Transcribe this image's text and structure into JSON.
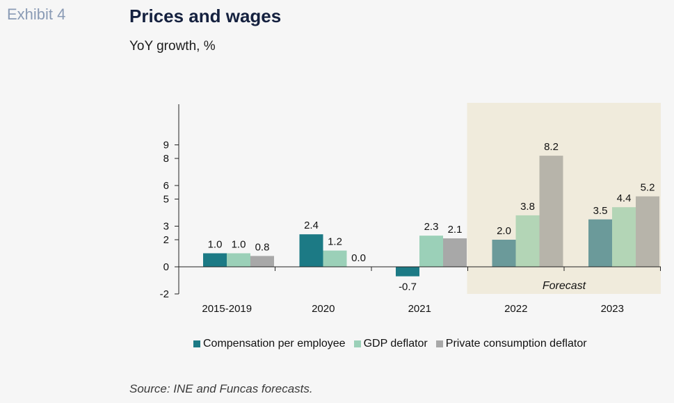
{
  "header": {
    "exhibit": "Exhibit 4",
    "title": "Prices and wages",
    "subtitle": "YoY growth, %"
  },
  "footer": {
    "source": "Source: INE and Funcas forecasts."
  },
  "colors": {
    "background": "#f6f6f6",
    "forecast_band": "#f0ebdc",
    "compensation": "#1c7a85",
    "gdp": "#9bd0b8",
    "private": "#a8a8a8",
    "compensation_forecast": "#6b9a9a",
    "gdp_forecast": "#b3d5b6",
    "private_forecast": "#b7b4aa"
  },
  "chart_data": {
    "type": "bar",
    "categories": [
      "2015-2019",
      "2020",
      "2021",
      "2022",
      "2023"
    ],
    "series": [
      {
        "name": "Compensation per employee",
        "values": [
          1.0,
          2.4,
          -0.7,
          2.0,
          3.5
        ]
      },
      {
        "name": "GDP deflator",
        "values": [
          1.0,
          1.2,
          2.3,
          3.8,
          4.4
        ]
      },
      {
        "name": "Private consumption deflator",
        "values": [
          0.8,
          0.0,
          2.1,
          8.2,
          5.2
        ]
      }
    ],
    "data_labels": [
      [
        "1.0",
        "2.4",
        "-0.7",
        "2.0",
        "3.5"
      ],
      [
        "1.0",
        "1.2",
        "2.3",
        "3.8",
        "4.4"
      ],
      [
        "0.8",
        "0.0",
        "2.1",
        "8.2",
        "5.2"
      ]
    ],
    "y_ticks": [
      -2,
      0,
      2,
      3,
      5,
      6,
      8,
      9
    ],
    "forecast_categories": [
      "2022",
      "2023"
    ],
    "forecast_label": "Forecast",
    "legend_position": "bottom",
    "grid": false
  }
}
